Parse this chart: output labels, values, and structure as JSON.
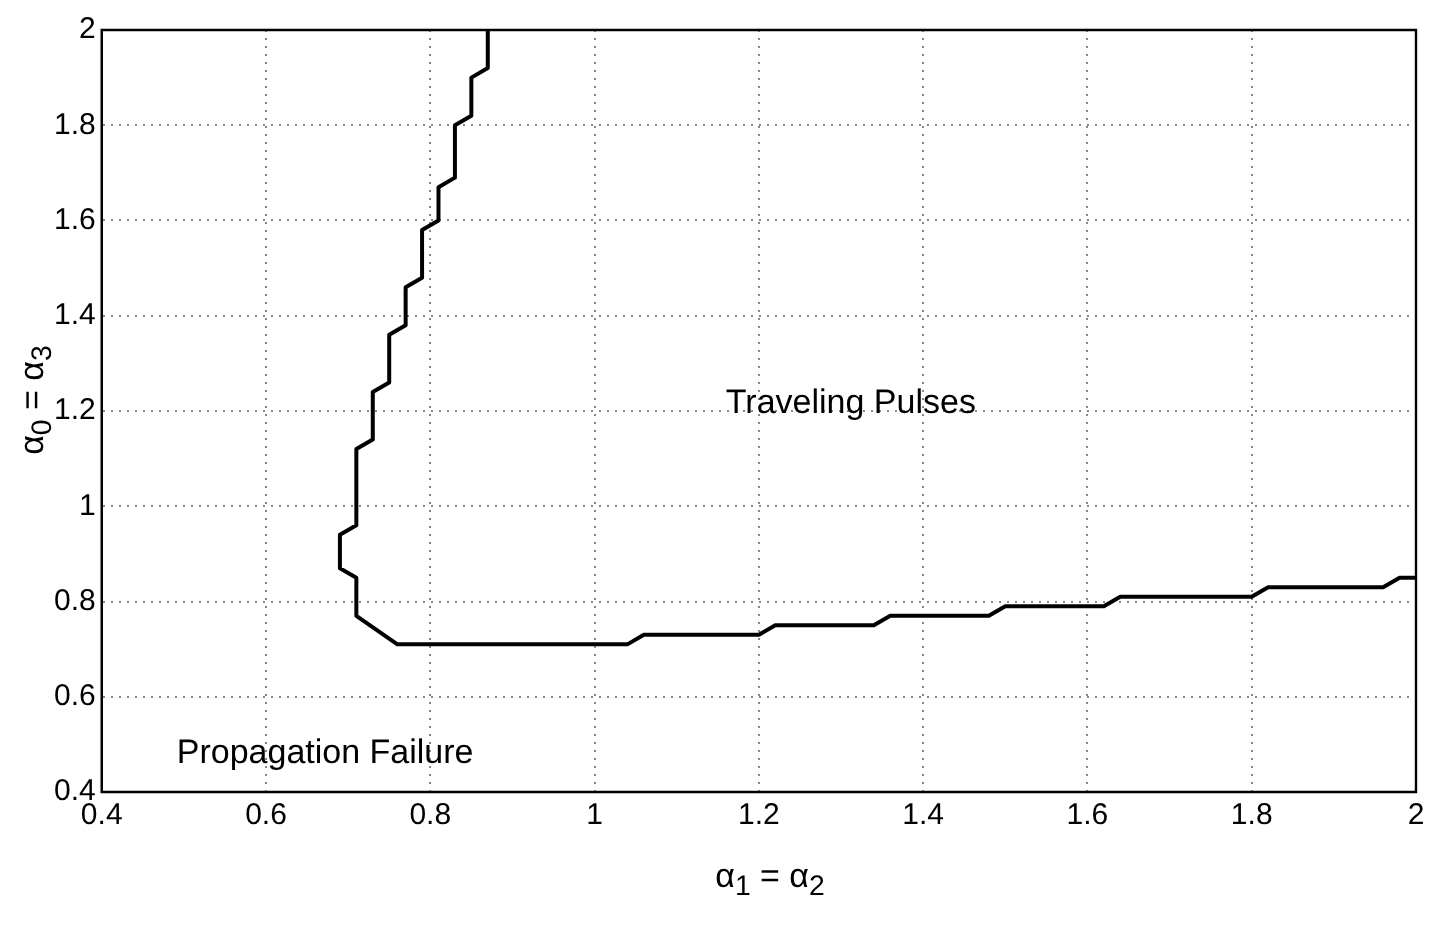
{
  "chart_data": {
    "type": "line",
    "xlabel": "α$_{1}$ = α$_{2}$",
    "ylabel": "α$_{0}$ = α$_{3}$",
    "series": [
      {
        "color": "#000000",
        "x": [
          0.87,
          0.87,
          0.85,
          0.85,
          0.83,
          0.83,
          0.81,
          0.81,
          0.79,
          0.79,
          0.77,
          0.77,
          0.75,
          0.75,
          0.73,
          0.73,
          0.71,
          0.71,
          0.69,
          0.69,
          0.71,
          0.71,
          0.76,
          1.04,
          1.06,
          1.2,
          1.22,
          1.34,
          1.36,
          1.48,
          1.5,
          1.62,
          1.64,
          1.8,
          1.82,
          1.96,
          1.98,
          2.0
        ],
        "values": [
          2.0,
          1.92,
          1.9,
          1.82,
          1.8,
          1.69,
          1.67,
          1.6,
          1.58,
          1.48,
          1.46,
          1.38,
          1.36,
          1.26,
          1.24,
          1.14,
          1.12,
          0.96,
          0.94,
          0.87,
          0.85,
          0.77,
          0.71,
          0.71,
          0.73,
          0.73,
          0.75,
          0.75,
          0.77,
          0.77,
          0.79,
          0.79,
          0.81,
          0.81,
          0.83,
          0.83,
          0.85,
          0.85
        ]
      }
    ],
    "xlim": [
      0.4,
      2
    ],
    "xticks": [
      0.4,
      0.6,
      0.8,
      1,
      1.2,
      1.4,
      1.6,
      1.8,
      2
    ],
    "ylim": [
      0.4,
      2
    ],
    "yticks": [
      0.4,
      0.6,
      0.8,
      1,
      1.2,
      1.4,
      1.6,
      1.8,
      2
    ],
    "grid": true,
    "marker": "none",
    "line_style": "solid",
    "legend": false,
    "annotations": [
      "Traveling Pulses",
      "Propagation Failure"
    ]
  }
}
